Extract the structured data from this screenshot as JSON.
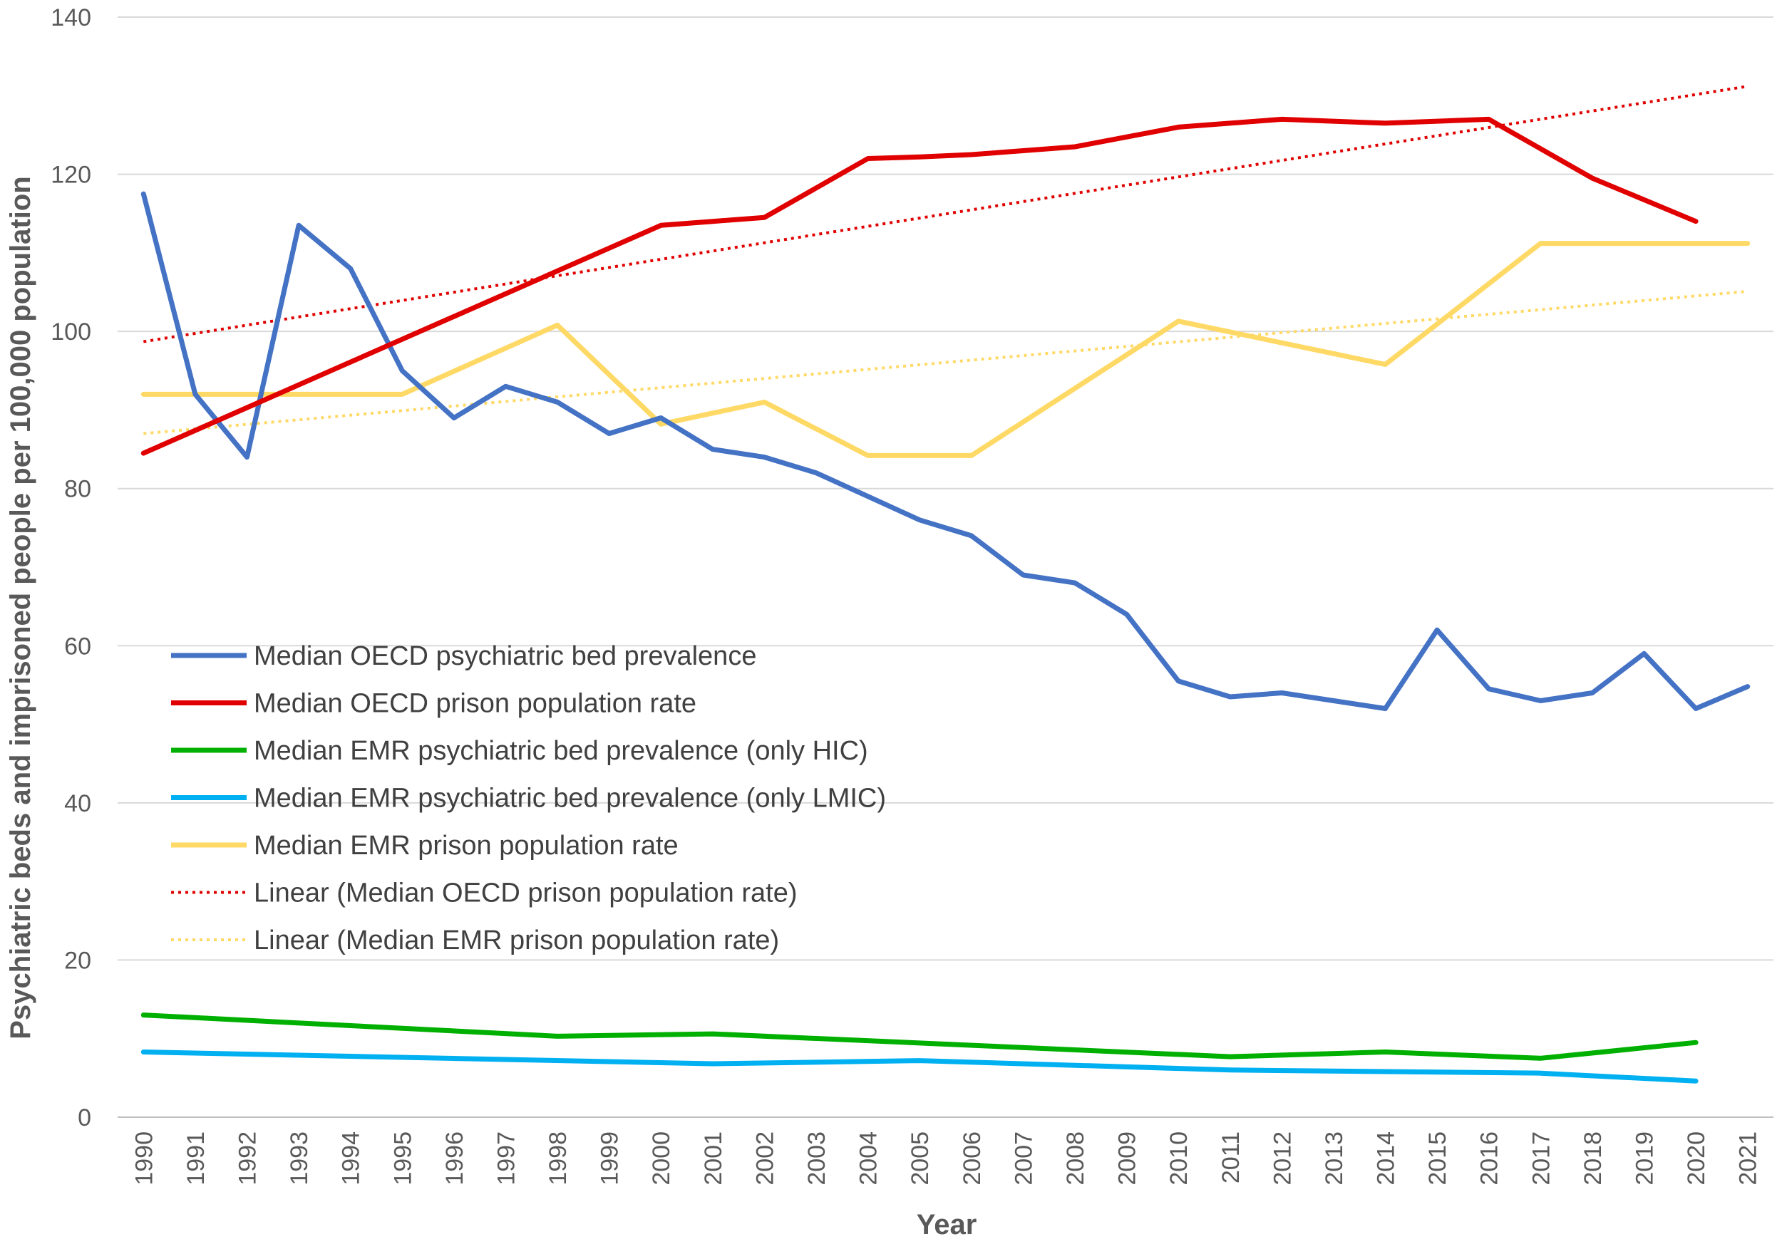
{
  "chart_data": {
    "type": "line",
    "title": "",
    "xlabel": "Year",
    "ylabel": "Psychiatric beds and imprisoned people per 100,000 population",
    "ylim": [
      0,
      140
    ],
    "yticks": [
      0,
      20,
      40,
      60,
      80,
      100,
      120,
      140
    ],
    "grid": "horizontal",
    "legend_position": "left, lower-middle (inside plot)",
    "x": [
      "1990",
      "1991",
      "1992",
      "1993",
      "1994",
      "1995",
      "1996",
      "1997",
      "1998",
      "1999",
      "2000",
      "2001",
      "2002",
      "2003",
      "2004",
      "2005",
      "2006",
      "2007",
      "2008",
      "2009",
      "2010",
      "2011",
      "2012",
      "2013",
      "2014",
      "2015",
      "2016",
      "2017",
      "2018",
      "2019",
      "2020",
      "2021"
    ],
    "series": [
      {
        "name": "Median OECD psychiatric bed prevalence",
        "color": "#4472C4",
        "style": "solid",
        "values": [
          117.5,
          92,
          84,
          113.5,
          108,
          95,
          89,
          93,
          91,
          87,
          89,
          85,
          84,
          82,
          79,
          76,
          74,
          69,
          68,
          64,
          55.5,
          53.5,
          54,
          53,
          52,
          62,
          54.5,
          53,
          54,
          59,
          52,
          54.8
        ]
      },
      {
        "name": "Median OECD prison population rate",
        "color": "#E00000",
        "style": "solid",
        "values": [
          84.5,
          null,
          null,
          null,
          null,
          null,
          null,
          null,
          null,
          null,
          113.5,
          114,
          114.5,
          null,
          122,
          122.2,
          122.5,
          123,
          123.5,
          null,
          126,
          126.5,
          127,
          null,
          126.5,
          null,
          127,
          null,
          119.5,
          null,
          114,
          null
        ]
      },
      {
        "name": "Median EMR psychiatric bed prevalence (only HIC)",
        "color": "#00B000",
        "style": "solid",
        "values": [
          13,
          null,
          null,
          null,
          null,
          null,
          null,
          null,
          10.3,
          null,
          null,
          10.6,
          null,
          null,
          null,
          null,
          null,
          null,
          null,
          null,
          null,
          7.7,
          null,
          null,
          8.3,
          null,
          null,
          7.5,
          null,
          null,
          9.5,
          null
        ]
      },
      {
        "name": "Median EMR psychiatric bed prevalence (only LMIC)",
        "color": "#00B0F0",
        "style": "solid",
        "values": [
          8.3,
          null,
          null,
          null,
          null,
          null,
          null,
          null,
          null,
          null,
          null,
          6.8,
          null,
          null,
          null,
          7.2,
          null,
          null,
          null,
          null,
          null,
          6,
          null,
          null,
          5.8,
          null,
          null,
          5.6,
          null,
          null,
          4.6,
          null
        ]
      },
      {
        "name": "Median EMR prison population rate",
        "color": "#FFD966",
        "style": "solid",
        "values": [
          92,
          92,
          92,
          92,
          92,
          92,
          null,
          null,
          100.8,
          null,
          88.2,
          null,
          91,
          null,
          84.2,
          84.2,
          84.2,
          null,
          null,
          null,
          101.3,
          null,
          null,
          null,
          95.8,
          null,
          null,
          111.2,
          111.2,
          111.2,
          111.2,
          111.2
        ]
      },
      {
        "name": "Linear (Median OECD prison population rate)",
        "color": "#E00000",
        "style": "dotted",
        "values": [
          98.7,
          null,
          null,
          null,
          null,
          null,
          null,
          null,
          null,
          null,
          null,
          null,
          null,
          null,
          null,
          null,
          null,
          null,
          null,
          null,
          null,
          null,
          null,
          null,
          null,
          null,
          null,
          null,
          null,
          null,
          null,
          131.2
        ]
      },
      {
        "name": "Linear (Median EMR prison population rate)",
        "color": "#FFD966",
        "style": "dotted",
        "values": [
          87,
          null,
          null,
          null,
          null,
          null,
          null,
          null,
          null,
          null,
          null,
          null,
          null,
          null,
          null,
          null,
          null,
          null,
          null,
          null,
          null,
          null,
          null,
          null,
          null,
          null,
          null,
          null,
          null,
          null,
          null,
          105.1
        ]
      }
    ]
  }
}
